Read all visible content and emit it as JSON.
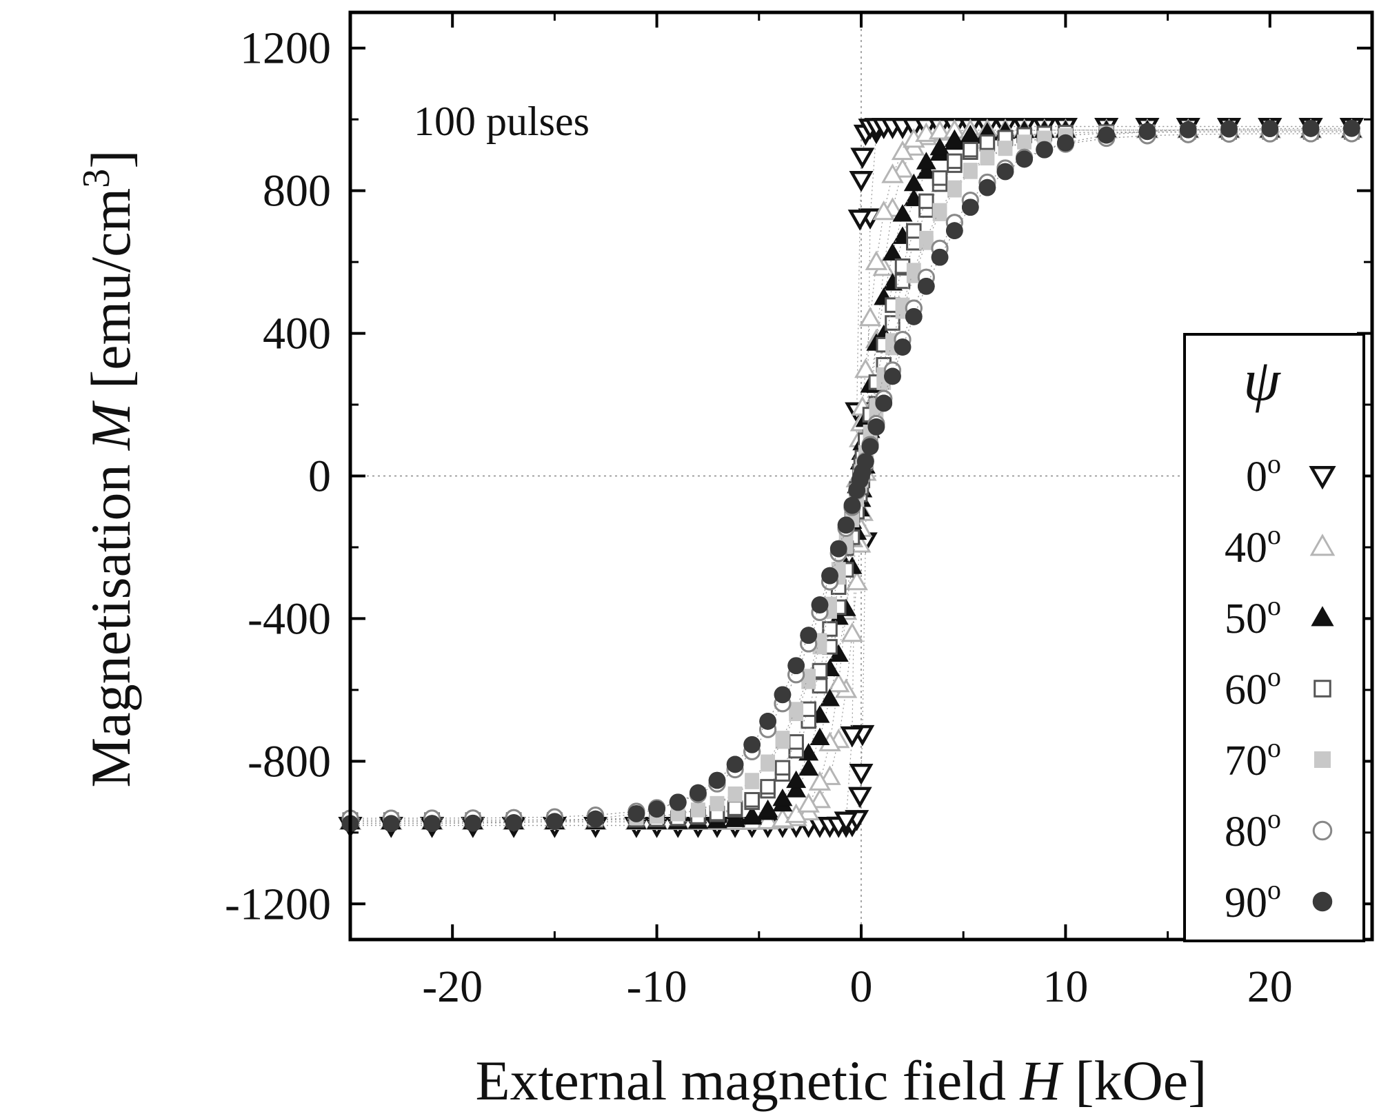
{
  "chart_data": {
    "type": "scatter",
    "title": "",
    "annotation": "100 pulses",
    "xlabel_prefix": "External magnetic field ",
    "xlabel_var": "H",
    "xlabel_suffix": " [kOe]",
    "ylabel_prefix": "Magnetisation ",
    "ylabel_var": "M",
    "ylabel_suffix": " [emu/cm",
    "ylabel_exp": "3",
    "ylabel_close": "]",
    "xlim": [
      -25,
      25
    ],
    "ylim": [
      -1300,
      1300
    ],
    "xticks": [
      -20,
      -10,
      0,
      10,
      20
    ],
    "xtick_labels": [
      "-20",
      "-10",
      "0",
      "10",
      "20"
    ],
    "yticks": [
      -1200,
      -800,
      -400,
      0,
      400,
      800,
      1200
    ],
    "ytick_labels": [
      "-1200",
      "-800",
      "-400",
      "0",
      "400",
      "800",
      "1200"
    ],
    "grid": false,
    "zero_lines": true,
    "legend_title": "ψ",
    "legend_position": "right",
    "series": [
      {
        "name": "0",
        "sup": "o",
        "marker": "triangle-down-open",
        "color": "#111111",
        "ms": 980,
        "hc": 0.25,
        "a": 0.2
      },
      {
        "name": "40",
        "sup": "o",
        "marker": "triangle-up-open",
        "color": "#b5b5b5",
        "ms": 970,
        "hc": 0.2,
        "a": 1.3
      },
      {
        "name": "50",
        "sup": "o",
        "marker": "triangle-up-filled",
        "color": "#111111",
        "ms": 970,
        "hc": 0.15,
        "a": 2.2
      },
      {
        "name": "60",
        "sup": "o",
        "marker": "square-open",
        "color": "#555555",
        "ms": 965,
        "hc": 0.1,
        "a": 3.0
      },
      {
        "name": "70",
        "sup": "o",
        "marker": "square-filled",
        "color": "#c8c8c8",
        "ms": 965,
        "hc": 0.05,
        "a": 3.8
      },
      {
        "name": "80",
        "sup": "o",
        "marker": "circle-open",
        "color": "#888888",
        "ms": 960,
        "hc": 0.0,
        "a": 4.8
      },
      {
        "name": "90",
        "sup": "o",
        "marker": "circle-filled",
        "color": "#3a3a3a",
        "ms": 975,
        "hc": 0.0,
        "a": 5.2
      }
    ]
  }
}
